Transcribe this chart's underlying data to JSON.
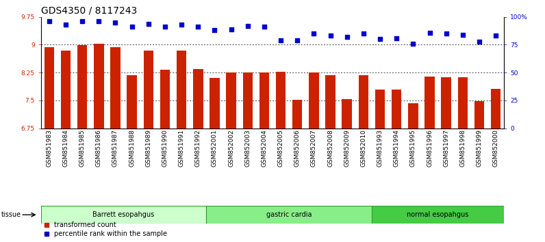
{
  "title": "GDS4350 / 8117243",
  "samples": [
    "GSM851983",
    "GSM851984",
    "GSM851985",
    "GSM851986",
    "GSM851987",
    "GSM851988",
    "GSM851989",
    "GSM851990",
    "GSM851991",
    "GSM851992",
    "GSM852001",
    "GSM852002",
    "GSM852003",
    "GSM852004",
    "GSM852005",
    "GSM852006",
    "GSM852007",
    "GSM852008",
    "GSM852009",
    "GSM852010",
    "GSM851993",
    "GSM851994",
    "GSM851995",
    "GSM851996",
    "GSM851997",
    "GSM851998",
    "GSM851999",
    "GSM852000"
  ],
  "bar_values": [
    8.93,
    8.85,
    8.99,
    9.03,
    8.93,
    8.18,
    8.85,
    8.32,
    8.85,
    8.35,
    8.1,
    8.25,
    8.25,
    8.25,
    8.28,
    7.52,
    8.25,
    8.18,
    7.53,
    8.18,
    7.8,
    7.8,
    7.42,
    8.15,
    8.13,
    8.13,
    7.48,
    7.82
  ],
  "percentile_values": [
    96,
    93,
    96,
    96,
    95,
    91,
    94,
    91,
    93,
    91,
    88,
    89,
    92,
    91,
    79,
    79,
    85,
    83,
    82,
    85,
    80,
    81,
    76,
    86,
    85,
    84,
    78,
    83
  ],
  "bar_color": "#cc2200",
  "dot_color": "#0000cc",
  "ylim_left": [
    6.75,
    9.75
  ],
  "ylim_right": [
    0,
    100
  ],
  "yticks_left": [
    6.75,
    7.5,
    8.25,
    9.0,
    9.75
  ],
  "ytick_labels_left": [
    "6.75",
    "7.5",
    "8.25",
    "9",
    "9.75"
  ],
  "yticks_right": [
    0,
    25,
    50,
    75,
    100
  ],
  "ytick_labels_right": [
    "0",
    "25",
    "50",
    "75",
    "100%"
  ],
  "hlines": [
    7.5,
    8.25,
    9.0
  ],
  "groups": [
    {
      "label": "Barrett esopahgus",
      "start": 0,
      "end": 9,
      "color": "#ccffcc"
    },
    {
      "label": "gastric cardia",
      "start": 10,
      "end": 19,
      "color": "#88ee88"
    },
    {
      "label": "normal esopahgus",
      "start": 20,
      "end": 27,
      "color": "#44cc44"
    }
  ],
  "tissue_label": "tissue",
  "legend_items": [
    {
      "label": "transformed count",
      "color": "#cc2200"
    },
    {
      "label": "percentile rank within the sample",
      "color": "#0000cc"
    }
  ],
  "bar_width": 0.6,
  "background_color": "#ffffff",
  "plot_bg_color": "#ffffff",
  "title_fontsize": 10,
  "tick_fontsize": 6.5,
  "label_fontsize": 8
}
